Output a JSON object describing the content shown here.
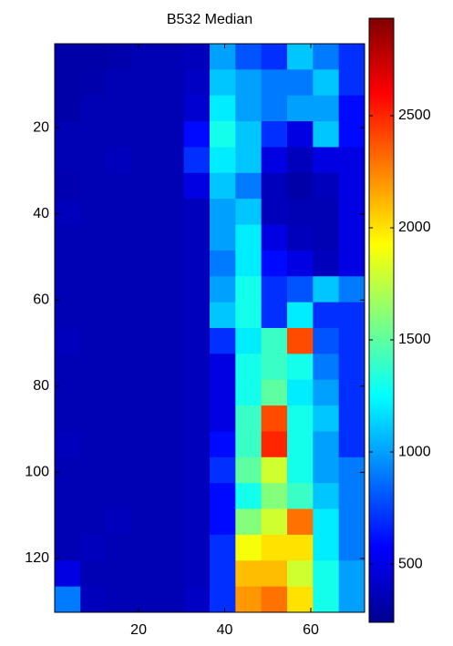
{
  "chart_data": {
    "type": "heatmap",
    "title": "B532 Median",
    "colormap": "jet",
    "x": [
      3.5,
      9.5,
      15.5,
      21.5,
      27.5,
      33.5,
      39.5,
      45.5,
      51.5,
      57.5,
      63.5,
      69.5
    ],
    "y": [
      3.5,
      9.5,
      15.5,
      21.5,
      27.5,
      33.5,
      39.5,
      45.5,
      51.5,
      57.5,
      63.5,
      69.5,
      75.5,
      81.5,
      87.5,
      93.5,
      99.5,
      105.5,
      111.5,
      117.5,
      123.5,
      129.5
    ],
    "z": [
      [
        350,
        350,
        360,
        380,
        380,
        400,
        1000,
        800,
        700,
        1100,
        900,
        700
      ],
      [
        350,
        360,
        380,
        380,
        380,
        420,
        1100,
        1000,
        900,
        900,
        1100,
        700
      ],
      [
        350,
        380,
        380,
        380,
        380,
        450,
        1200,
        1000,
        900,
        1000,
        1000,
        600
      ],
      [
        380,
        380,
        380,
        380,
        380,
        600,
        1300,
        1100,
        700,
        500,
        1100,
        600
      ],
      [
        380,
        380,
        400,
        380,
        380,
        700,
        1200,
        1100,
        500,
        400,
        500,
        500
      ],
      [
        370,
        380,
        380,
        380,
        380,
        500,
        1100,
        900,
        400,
        350,
        400,
        500
      ],
      [
        400,
        380,
        380,
        380,
        380,
        400,
        1000,
        1100,
        400,
        380,
        380,
        500
      ],
      [
        380,
        380,
        380,
        380,
        380,
        400,
        1000,
        1200,
        500,
        400,
        380,
        500
      ],
      [
        380,
        380,
        380,
        380,
        380,
        400,
        900,
        1200,
        600,
        500,
        400,
        500
      ],
      [
        380,
        380,
        380,
        380,
        380,
        400,
        1000,
        1300,
        700,
        800,
        1100,
        900
      ],
      [
        380,
        380,
        380,
        380,
        380,
        400,
        1100,
        1300,
        700,
        1200,
        700,
        700
      ],
      [
        400,
        380,
        380,
        380,
        380,
        400,
        700,
        1200,
        1400,
        2400,
        800,
        700
      ],
      [
        380,
        380,
        380,
        380,
        380,
        400,
        500,
        1300,
        1400,
        1300,
        900,
        700
      ],
      [
        380,
        380,
        380,
        380,
        380,
        400,
        500,
        1300,
        1500,
        1200,
        1000,
        700
      ],
      [
        380,
        380,
        380,
        380,
        380,
        400,
        500,
        1400,
        2400,
        1300,
        1100,
        700
      ],
      [
        400,
        380,
        380,
        380,
        380,
        400,
        600,
        1400,
        2500,
        1300,
        1000,
        700
      ],
      [
        380,
        380,
        380,
        380,
        380,
        400,
        700,
        1500,
        1800,
        1300,
        1000,
        900
      ],
      [
        380,
        380,
        380,
        380,
        380,
        400,
        600,
        1300,
        1600,
        1400,
        1100,
        900
      ],
      [
        380,
        380,
        400,
        380,
        380,
        400,
        600,
        1600,
        1800,
        2300,
        1200,
        900
      ],
      [
        380,
        400,
        380,
        380,
        380,
        400,
        700,
        1900,
        2000,
        2000,
        1200,
        900
      ],
      [
        500,
        380,
        380,
        380,
        380,
        400,
        700,
        2100,
        2100,
        1800,
        1300,
        1000
      ],
      [
        900,
        400,
        380,
        380,
        380,
        420,
        700,
        2200,
        2300,
        2000,
        1300,
        1000
      ]
    ],
    "xlim": [
      0.5,
      72.5
    ],
    "ylim": [
      0.5,
      132.5
    ],
    "y_reversed": true,
    "xticks": [
      20,
      40,
      60
    ],
    "yticks": [
      20,
      40,
      60,
      80,
      100,
      120
    ],
    "clim": [
      240,
      2935
    ],
    "cticks": [
      500,
      1000,
      1500,
      2000,
      2500
    ]
  }
}
